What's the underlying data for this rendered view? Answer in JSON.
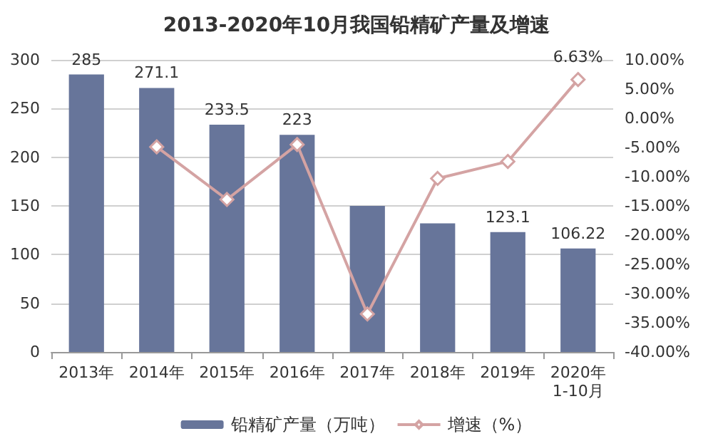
{
  "chart_data": {
    "type": "bar",
    "title": "2013-2020年10月我国铅精矿产量及增速",
    "categories": [
      "2013年",
      "2014年",
      "2015年",
      "2016年",
      "2017年",
      "2018年",
      "2019年",
      "2020年\n1-10月"
    ],
    "series": [
      {
        "name": "铅精矿产量（万吨）",
        "color": "#67759a",
        "values": [
          285,
          271.1,
          233.5,
          223,
          150,
          132,
          123.1,
          106.22
        ],
        "value_labels": [
          "285",
          "271.1",
          "233.5",
          "223",
          null,
          null,
          "123.1",
          "106.22"
        ]
      },
      {
        "name": "增速（%）",
        "type": "line",
        "axis": "y2",
        "color": "#d4a3a3",
        "marker": "diamond",
        "values": [
          null,
          -4.9,
          -13.9,
          -4.5,
          -33.5,
          -10.3,
          -7.4,
          6.63
        ],
        "value_labels": [
          null,
          null,
          null,
          null,
          null,
          null,
          null,
          "6.63%"
        ]
      }
    ],
    "ylim": [
      0,
      300
    ],
    "yticks": [
      0,
      50,
      100,
      150,
      200,
      250,
      300
    ],
    "y2lim": [
      -40,
      10
    ],
    "y2ticks": [
      {
        "value": -40,
        "label": "-40.00%"
      },
      {
        "value": -35,
        "label": "-35.00%"
      },
      {
        "value": -30,
        "label": "-30.00%"
      },
      {
        "value": -25,
        "label": "-25.00%"
      },
      {
        "value": -20,
        "label": "-20.00%"
      },
      {
        "value": -15,
        "label": "-15.00%"
      },
      {
        "value": -10,
        "label": "-10.00%"
      },
      {
        "value": -5,
        "label": "-5.00%"
      },
      {
        "value": 0,
        "label": "0.00%"
      },
      {
        "value": 5,
        "label": "5.00%"
      },
      {
        "value": 10,
        "label": "10.00%"
      }
    ],
    "grid": "y",
    "legend": "bottom"
  }
}
